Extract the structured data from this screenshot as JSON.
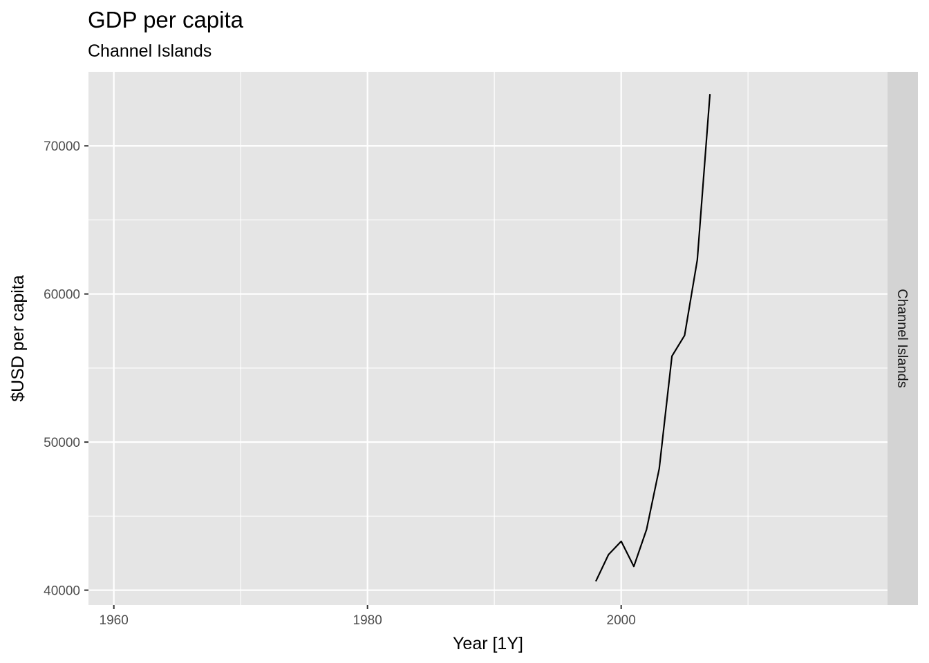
{
  "chart_data": {
    "type": "line",
    "title": "GDP per capita",
    "subtitle": "Channel Islands",
    "xlabel": "Year [1Y]",
    "ylabel": "$USD per capita",
    "facet_label": "Channel Islands",
    "xlim": [
      1958,
      2021
    ],
    "ylim": [
      39000,
      75000
    ],
    "x_ticks": [
      1960,
      1980,
      2000
    ],
    "x_minor_ticks": [
      1970,
      1990,
      2010
    ],
    "y_ticks": [
      40000,
      50000,
      60000,
      70000
    ],
    "y_minor_ticks": [
      45000,
      55000,
      65000
    ],
    "grid": true,
    "colors": {
      "panel": "#e5e5e5",
      "grid": "#ffffff",
      "strip": "#d3d3d3",
      "line": "#000000",
      "tick": "#333333"
    },
    "series": [
      {
        "x": [
          1998,
          1999,
          2000,
          2001,
          2002,
          2003,
          2004,
          2005,
          2006,
          2007
        ],
        "values": [
          40600,
          42400,
          43300,
          41600,
          44100,
          48200,
          55800,
          57200,
          62300,
          73500
        ]
      }
    ]
  }
}
